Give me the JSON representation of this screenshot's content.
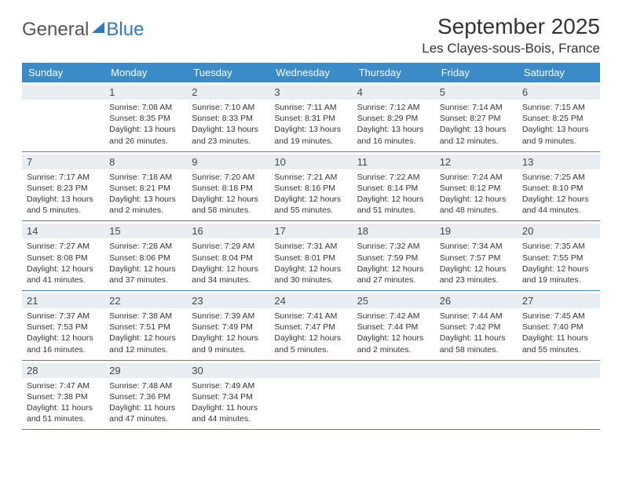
{
  "logo": {
    "textA": "General",
    "textB": "Blue"
  },
  "title": "September 2025",
  "location": "Les Clayes-sous-Bois, France",
  "colors": {
    "header_bg": "#3b8bc9",
    "header_text": "#ffffff",
    "daynum_bg": "#e9eef2",
    "rule": "#3b8bc9",
    "logo_blue": "#2f7bbf",
    "body_text": "#333333"
  },
  "dayNames": [
    "Sunday",
    "Monday",
    "Tuesday",
    "Wednesday",
    "Thursday",
    "Friday",
    "Saturday"
  ],
  "weeks": [
    [
      {
        "n": "",
        "sunrise": "",
        "sunset": "",
        "daylight": ""
      },
      {
        "n": "1",
        "sunrise": "Sunrise: 7:08 AM",
        "sunset": "Sunset: 8:35 PM",
        "daylight": "Daylight: 13 hours and 26 minutes."
      },
      {
        "n": "2",
        "sunrise": "Sunrise: 7:10 AM",
        "sunset": "Sunset: 8:33 PM",
        "daylight": "Daylight: 13 hours and 23 minutes."
      },
      {
        "n": "3",
        "sunrise": "Sunrise: 7:11 AM",
        "sunset": "Sunset: 8:31 PM",
        "daylight": "Daylight: 13 hours and 19 minutes."
      },
      {
        "n": "4",
        "sunrise": "Sunrise: 7:12 AM",
        "sunset": "Sunset: 8:29 PM",
        "daylight": "Daylight: 13 hours and 16 minutes."
      },
      {
        "n": "5",
        "sunrise": "Sunrise: 7:14 AM",
        "sunset": "Sunset: 8:27 PM",
        "daylight": "Daylight: 13 hours and 12 minutes."
      },
      {
        "n": "6",
        "sunrise": "Sunrise: 7:15 AM",
        "sunset": "Sunset: 8:25 PM",
        "daylight": "Daylight: 13 hours and 9 minutes."
      }
    ],
    [
      {
        "n": "7",
        "sunrise": "Sunrise: 7:17 AM",
        "sunset": "Sunset: 8:23 PM",
        "daylight": "Daylight: 13 hours and 5 minutes."
      },
      {
        "n": "8",
        "sunrise": "Sunrise: 7:18 AM",
        "sunset": "Sunset: 8:21 PM",
        "daylight": "Daylight: 13 hours and 2 minutes."
      },
      {
        "n": "9",
        "sunrise": "Sunrise: 7:20 AM",
        "sunset": "Sunset: 8:18 PM",
        "daylight": "Daylight: 12 hours and 58 minutes."
      },
      {
        "n": "10",
        "sunrise": "Sunrise: 7:21 AM",
        "sunset": "Sunset: 8:16 PM",
        "daylight": "Daylight: 12 hours and 55 minutes."
      },
      {
        "n": "11",
        "sunrise": "Sunrise: 7:22 AM",
        "sunset": "Sunset: 8:14 PM",
        "daylight": "Daylight: 12 hours and 51 minutes."
      },
      {
        "n": "12",
        "sunrise": "Sunrise: 7:24 AM",
        "sunset": "Sunset: 8:12 PM",
        "daylight": "Daylight: 12 hours and 48 minutes."
      },
      {
        "n": "13",
        "sunrise": "Sunrise: 7:25 AM",
        "sunset": "Sunset: 8:10 PM",
        "daylight": "Daylight: 12 hours and 44 minutes."
      }
    ],
    [
      {
        "n": "14",
        "sunrise": "Sunrise: 7:27 AM",
        "sunset": "Sunset: 8:08 PM",
        "daylight": "Daylight: 12 hours and 41 minutes."
      },
      {
        "n": "15",
        "sunrise": "Sunrise: 7:28 AM",
        "sunset": "Sunset: 8:06 PM",
        "daylight": "Daylight: 12 hours and 37 minutes."
      },
      {
        "n": "16",
        "sunrise": "Sunrise: 7:29 AM",
        "sunset": "Sunset: 8:04 PM",
        "daylight": "Daylight: 12 hours and 34 minutes."
      },
      {
        "n": "17",
        "sunrise": "Sunrise: 7:31 AM",
        "sunset": "Sunset: 8:01 PM",
        "daylight": "Daylight: 12 hours and 30 minutes."
      },
      {
        "n": "18",
        "sunrise": "Sunrise: 7:32 AM",
        "sunset": "Sunset: 7:59 PM",
        "daylight": "Daylight: 12 hours and 27 minutes."
      },
      {
        "n": "19",
        "sunrise": "Sunrise: 7:34 AM",
        "sunset": "Sunset: 7:57 PM",
        "daylight": "Daylight: 12 hours and 23 minutes."
      },
      {
        "n": "20",
        "sunrise": "Sunrise: 7:35 AM",
        "sunset": "Sunset: 7:55 PM",
        "daylight": "Daylight: 12 hours and 19 minutes."
      }
    ],
    [
      {
        "n": "21",
        "sunrise": "Sunrise: 7:37 AM",
        "sunset": "Sunset: 7:53 PM",
        "daylight": "Daylight: 12 hours and 16 minutes."
      },
      {
        "n": "22",
        "sunrise": "Sunrise: 7:38 AM",
        "sunset": "Sunset: 7:51 PM",
        "daylight": "Daylight: 12 hours and 12 minutes."
      },
      {
        "n": "23",
        "sunrise": "Sunrise: 7:39 AM",
        "sunset": "Sunset: 7:49 PM",
        "daylight": "Daylight: 12 hours and 9 minutes."
      },
      {
        "n": "24",
        "sunrise": "Sunrise: 7:41 AM",
        "sunset": "Sunset: 7:47 PM",
        "daylight": "Daylight: 12 hours and 5 minutes."
      },
      {
        "n": "25",
        "sunrise": "Sunrise: 7:42 AM",
        "sunset": "Sunset: 7:44 PM",
        "daylight": "Daylight: 12 hours and 2 minutes."
      },
      {
        "n": "26",
        "sunrise": "Sunrise: 7:44 AM",
        "sunset": "Sunset: 7:42 PM",
        "daylight": "Daylight: 11 hours and 58 minutes."
      },
      {
        "n": "27",
        "sunrise": "Sunrise: 7:45 AM",
        "sunset": "Sunset: 7:40 PM",
        "daylight": "Daylight: 11 hours and 55 minutes."
      }
    ],
    [
      {
        "n": "28",
        "sunrise": "Sunrise: 7:47 AM",
        "sunset": "Sunset: 7:38 PM",
        "daylight": "Daylight: 11 hours and 51 minutes."
      },
      {
        "n": "29",
        "sunrise": "Sunrise: 7:48 AM",
        "sunset": "Sunset: 7:36 PM",
        "daylight": "Daylight: 11 hours and 47 minutes."
      },
      {
        "n": "30",
        "sunrise": "Sunrise: 7:49 AM",
        "sunset": "Sunset: 7:34 PM",
        "daylight": "Daylight: 11 hours and 44 minutes."
      },
      {
        "n": "",
        "sunrise": "",
        "sunset": "",
        "daylight": ""
      },
      {
        "n": "",
        "sunrise": "",
        "sunset": "",
        "daylight": ""
      },
      {
        "n": "",
        "sunrise": "",
        "sunset": "",
        "daylight": ""
      },
      {
        "n": "",
        "sunrise": "",
        "sunset": "",
        "daylight": ""
      }
    ]
  ]
}
